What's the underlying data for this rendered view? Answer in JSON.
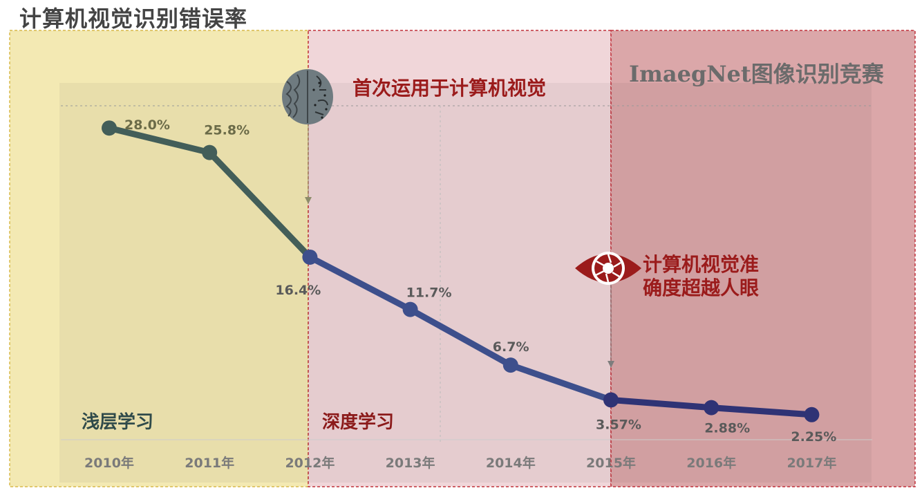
{
  "title": "计算机视觉识别错误率",
  "zones": {
    "shallow": "浅层学习",
    "deep": "深度学习"
  },
  "annotations": {
    "first_use": "首次运用于计算机视觉",
    "imagenet": "ImaegNet图像识别竞赛",
    "eye_line1": "计算机视觉准",
    "eye_line2": "确度超越人眼"
  },
  "icons": {
    "brain": "brain-icon",
    "eye": "camera-eye-icon"
  },
  "colors": {
    "shallow_zone": "#f3e9b3",
    "deep_zone": "#f0d6d9",
    "imagenet_zone": "#dba7a9",
    "shallow_line": "#435e59",
    "deep_line": "#3d4f8c",
    "late_line": "#2f3375",
    "zone_border": "#c0313a"
  },
  "chart_data": {
    "type": "line",
    "categories": [
      "2010年",
      "2011年",
      "2012年",
      "2013年",
      "2014年",
      "2015年",
      "2016年",
      "2017年"
    ],
    "values": [
      28.0,
      25.8,
      16.4,
      11.7,
      6.7,
      3.57,
      2.88,
      2.25
    ],
    "data_labels": [
      "28.0%",
      "25.8%",
      "16.4%",
      "11.7%",
      "6.7%",
      "3.57%",
      "2.88%",
      "2.25%"
    ],
    "title": "计算机视觉识别错误率",
    "xlabel": "",
    "ylabel": "",
    "ylim": [
      0,
      30
    ],
    "grid": false
  }
}
